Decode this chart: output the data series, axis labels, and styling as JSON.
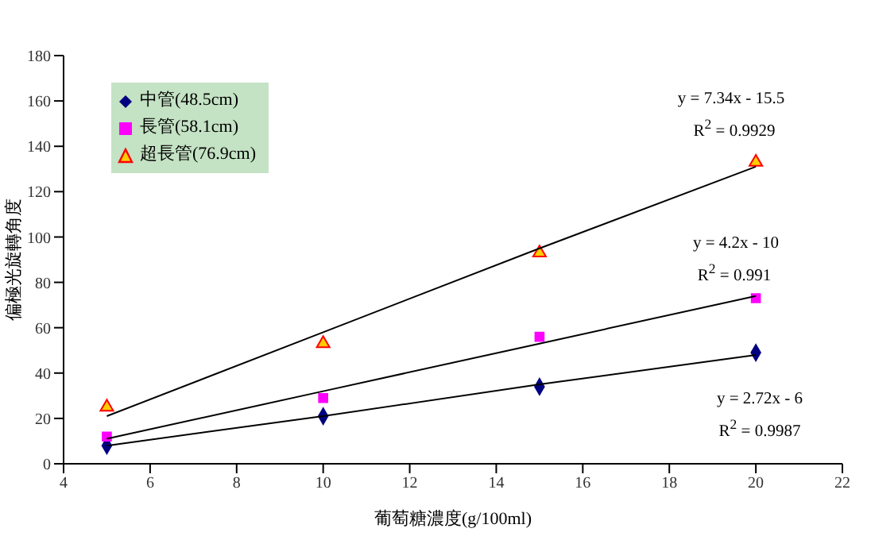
{
  "chart_data": {
    "type": "scatter",
    "xlabel": "葡萄糖濃度(g/100ml)",
    "ylabel": "偏極光旋轉角度",
    "xlim": [
      4,
      22
    ],
    "xticks": [
      4,
      6,
      8,
      10,
      12,
      14,
      16,
      18,
      20,
      22
    ],
    "ylim": [
      0,
      180
    ],
    "yticks": [
      0,
      20,
      40,
      60,
      80,
      100,
      120,
      140,
      160,
      180
    ],
    "grid": false,
    "legend": "top left",
    "x": [
      5,
      10,
      15,
      20
    ],
    "series": [
      {
        "name": "中管(48.5cm)",
        "color": "#000080",
        "marker": "diamond",
        "values": [
          8,
          21,
          34,
          49
        ]
      },
      {
        "name": "長管(58.1cm)",
        "color": "#ff00ff",
        "marker": "square",
        "values": [
          12,
          29,
          56,
          73
        ]
      },
      {
        "name": "超長管(76.9cm)",
        "color": "#ffcc00",
        "marker": "triangle",
        "values": [
          25,
          53,
          93,
          133
        ]
      },
      {
        "type": "line",
        "color": "#000000",
        "marker": "none",
        "values": [
          8,
          21,
          35,
          48
        ]
      },
      {
        "type": "line",
        "color": "#000000",
        "marker": "none",
        "values": [
          11,
          32,
          53,
          74
        ]
      },
      {
        "type": "line",
        "color": "#000000",
        "marker": "none",
        "values": [
          21,
          58,
          95,
          131
        ]
      }
    ],
    "annotations": [
      "y = 7.34x - 15.5",
      "R$^{2}$ = 0.9929",
      "y = 4.2x - 10",
      "R$^{2}$ = 0.991",
      "y = 2.72x - 6",
      "R$^{2}$ = 0.9987"
    ]
  }
}
